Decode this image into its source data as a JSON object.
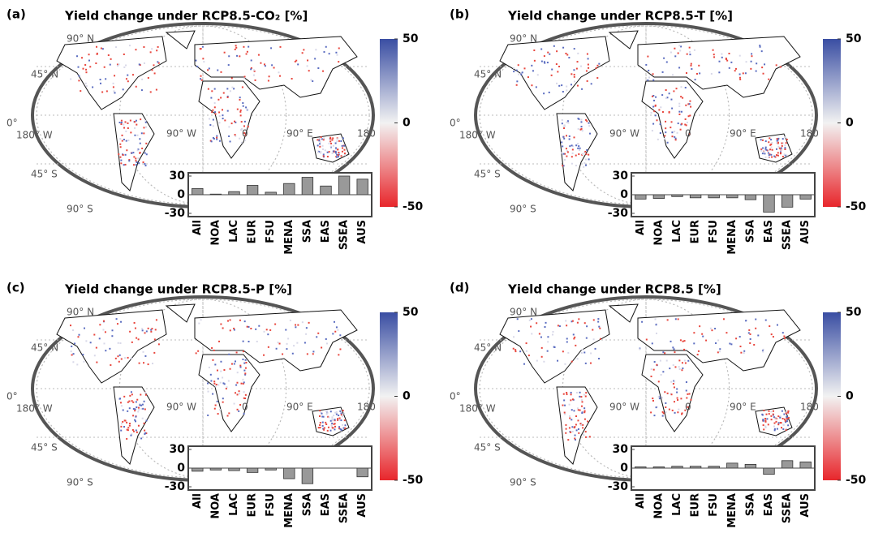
{
  "chart_data": [
    {
      "type": "bar",
      "panel_label": "(a)",
      "title": "Yield change under RCP8.5-CO₂ [%]",
      "categories": [
        "All",
        "NOA",
        "LAC",
        "EUR",
        "FSU",
        "MENA",
        "SSA",
        "EAS",
        "SSEA",
        "AUS"
      ],
      "values": [
        10,
        1,
        5,
        15,
        4,
        18,
        28,
        14,
        30,
        25
      ],
      "color": "#999999",
      "ylim": [
        -30,
        30
      ],
      "yticks": [
        -30,
        0,
        30
      ],
      "colorbar_lim": [
        -50,
        50
      ],
      "colorbar_ticks": [
        -50,
        0,
        50
      ],
      "map_labels": [
        "90° N",
        "45° N",
        "0°",
        "180° W",
        "90° W",
        "0",
        "90° E",
        "180",
        "45° S",
        "90° S"
      ]
    },
    {
      "type": "bar",
      "panel_label": "(b)",
      "title": "Yield change under RCP8.5-T [%]",
      "categories": [
        "All",
        "NOA",
        "LAC",
        "EUR",
        "FSU",
        "MENA",
        "SSA",
        "EAS",
        "SSEA",
        "AUS"
      ],
      "values": [
        -7,
        -6,
        -3,
        -5,
        -5,
        -5,
        -8,
        -28,
        -20,
        -7
      ],
      "color": "#999999",
      "ylim": [
        -30,
        30
      ],
      "yticks": [
        -30,
        0,
        30
      ],
      "colorbar_lim": [
        -50,
        50
      ],
      "colorbar_ticks": [
        -50,
        0,
        50
      ],
      "map_labels": [
        "90° N",
        "45° N",
        "0°",
        "180° W",
        "90° W",
        "0",
        "90° E",
        "180",
        "45° S",
        "90° S"
      ]
    },
    {
      "type": "bar",
      "panel_label": "(c)",
      "title": "Yield change under RCP8.5-P [%]",
      "categories": [
        "All",
        "NOA",
        "LAC",
        "EUR",
        "FSU",
        "MENA",
        "SSA",
        "EAS",
        "SSEA",
        "AUS"
      ],
      "values": [
        -5,
        -3,
        -4,
        -7,
        -3,
        -17,
        -25,
        0,
        0,
        -14
      ],
      "color": "#999999",
      "ylim": [
        -30,
        30
      ],
      "yticks": [
        -30,
        0,
        30
      ],
      "colorbar_lim": [
        -50,
        50
      ],
      "colorbar_ticks": [
        -50,
        0,
        50
      ],
      "map_labels": [
        "90° N",
        "45° N",
        "0°",
        "180° W",
        "90° W",
        "0",
        "90° E",
        "180",
        "45° S",
        "90° S"
      ]
    },
    {
      "type": "bar",
      "panel_label": "(d)",
      "title": "Yield change under RCP8.5 [%]",
      "categories": [
        "All",
        "NOA",
        "LAC",
        "EUR",
        "FSU",
        "MENA",
        "SSA",
        "EAS",
        "SSEA",
        "AUS"
      ],
      "values": [
        2,
        2,
        3,
        3,
        3,
        8,
        6,
        -10,
        12,
        10
      ],
      "color": "#999999",
      "ylim": [
        -30,
        30
      ],
      "yticks": [
        -30,
        0,
        30
      ],
      "colorbar_lim": [
        -50,
        50
      ],
      "colorbar_ticks": [
        -50,
        0,
        50
      ],
      "map_labels": [
        "90° N",
        "45° N",
        "0°",
        "180° W",
        "90° W",
        "0",
        "90° E",
        "180",
        "45° S",
        "90° S"
      ]
    }
  ]
}
